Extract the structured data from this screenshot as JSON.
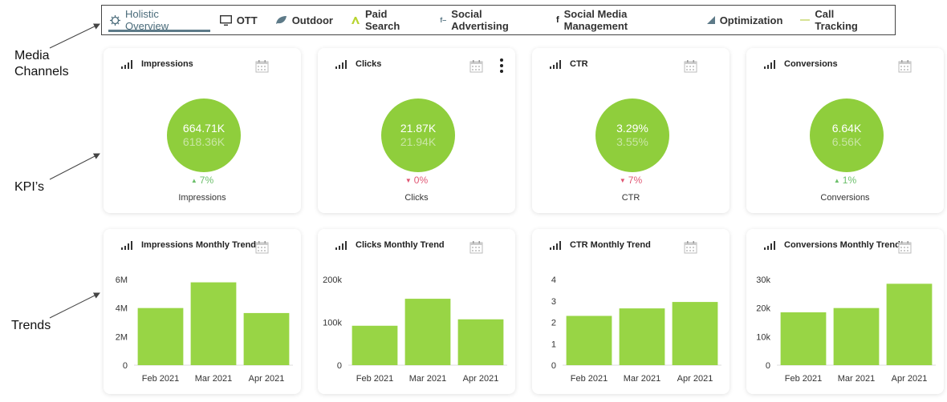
{
  "annotations": {
    "media_channels": "Media\nChannels",
    "kpis": "KPI’s",
    "trends": "Trends"
  },
  "nav": {
    "tabs": [
      {
        "label": "Holistic Overview",
        "icon": "gear-icon",
        "active": true
      },
      {
        "label": "OTT",
        "icon": "monitor-icon"
      },
      {
        "label": "Outdoor",
        "icon": "leaf-icon"
      },
      {
        "label": "Paid Search",
        "icon": "adwords-icon"
      },
      {
        "label": "Social Advertising",
        "icon": "facebook-ads-icon"
      },
      {
        "label": "Social Media Management",
        "icon": "facebook-icon"
      },
      {
        "label": "Optimization",
        "icon": "chart-icon"
      },
      {
        "label": "Call Tracking",
        "icon": "line-icon"
      }
    ]
  },
  "kpis": [
    {
      "title": "Impressions",
      "current": "664.71K",
      "previous": "618.36K",
      "change": "7%",
      "direction": "up",
      "label": "Impressions"
    },
    {
      "title": "Clicks",
      "current": "21.87K",
      "previous": "21.94K",
      "change": "0%",
      "direction": "down",
      "label": "Clicks"
    },
    {
      "title": "CTR",
      "current": "3.29%",
      "previous": "3.55%",
      "change": "7%",
      "direction": "down",
      "label": "CTR"
    },
    {
      "title": "Conversions",
      "current": "6.64K",
      "previous": "6.56K",
      "change": "1%",
      "direction": "up",
      "label": "Conversions"
    }
  ],
  "colors": {
    "bar": "#98d545",
    "circle": "#8fce3c",
    "up": "#6bbf6a",
    "down": "#e05673"
  },
  "chart_data": [
    {
      "type": "bar",
      "title": "Impressions Monthly Trend",
      "categories": [
        "Feb 2021",
        "Mar 2021",
        "Apr 2021"
      ],
      "values": [
        4000000,
        5800000,
        3650000
      ],
      "ylim": [
        0,
        6000000
      ],
      "yticks": [
        0,
        2000000,
        4000000,
        6000000
      ],
      "ytick_labels": [
        "0",
        "2M",
        "4M",
        "6M"
      ]
    },
    {
      "type": "bar",
      "title": "Clicks Monthly Trend",
      "categories": [
        "Feb 2021",
        "Mar 2021",
        "Apr 2021"
      ],
      "values": [
        92000,
        155000,
        107000
      ],
      "ylim": [
        0,
        200000
      ],
      "yticks": [
        0,
        100000,
        200000
      ],
      "ytick_labels": [
        "0",
        "100k",
        "200k"
      ]
    },
    {
      "type": "bar",
      "title": "CTR Monthly Trend",
      "categories": [
        "Feb 2021",
        "Mar 2021",
        "Apr 2021"
      ],
      "values": [
        2.3,
        2.65,
        2.95
      ],
      "ylim": [
        0,
        4
      ],
      "yticks": [
        0,
        1,
        2,
        3,
        4
      ],
      "ytick_labels": [
        "0",
        "1",
        "2",
        "3",
        "4"
      ]
    },
    {
      "type": "bar",
      "title": "Conversions Monthly Trend",
      "categories": [
        "Feb 2021",
        "Mar 2021",
        "Apr 2021"
      ],
      "values": [
        18500,
        20000,
        28500
      ],
      "ylim": [
        0,
        30000
      ],
      "yticks": [
        0,
        10000,
        20000,
        30000
      ],
      "ytick_labels": [
        "0",
        "10k",
        "20k",
        "30k"
      ]
    }
  ]
}
